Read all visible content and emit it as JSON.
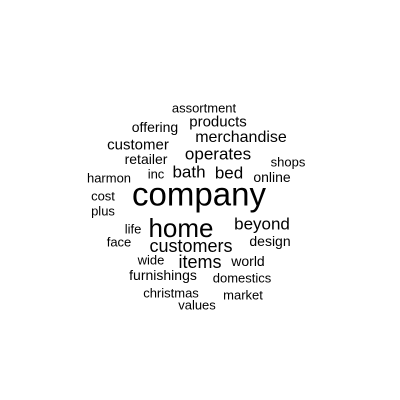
{
  "words": [
    {
      "text": "company"
    },
    {
      "text": "home"
    },
    {
      "text": "customers"
    },
    {
      "text": "beyond"
    },
    {
      "text": "items"
    },
    {
      "text": "operates"
    },
    {
      "text": "merchandise"
    },
    {
      "text": "bath"
    },
    {
      "text": "bed"
    },
    {
      "text": "products"
    },
    {
      "text": "customer"
    },
    {
      "text": "online"
    },
    {
      "text": "design"
    },
    {
      "text": "furnishings"
    },
    {
      "text": "offering"
    },
    {
      "text": "retailer"
    },
    {
      "text": "world"
    },
    {
      "text": "domestics"
    },
    {
      "text": "market"
    },
    {
      "text": "christmas"
    },
    {
      "text": "assortment"
    },
    {
      "text": "shops"
    },
    {
      "text": "inc"
    },
    {
      "text": "harmon"
    },
    {
      "text": "cost"
    },
    {
      "text": "plus"
    },
    {
      "text": "life"
    },
    {
      "text": "face"
    },
    {
      "text": "wide"
    },
    {
      "text": "values"
    }
  ]
}
